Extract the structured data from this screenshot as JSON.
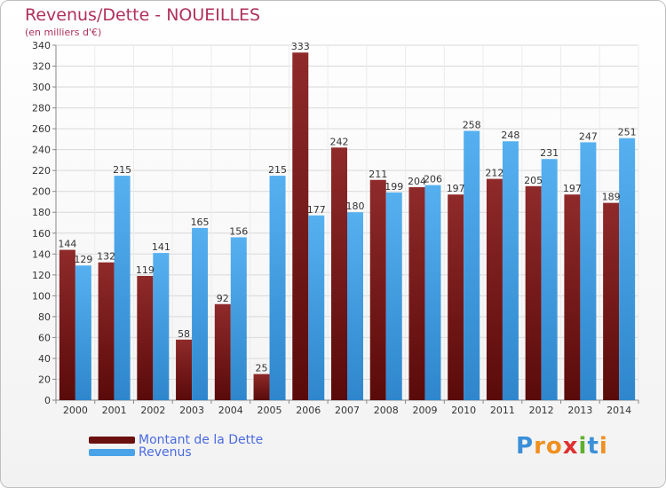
{
  "header": {
    "title": "Revenus/Dette - NOUEILLES",
    "subtitle": "(en milliers d'€)"
  },
  "legend": {
    "items": [
      {
        "label": "Montant de la Dette",
        "color": "#7a1a1a"
      },
      {
        "label": "Revenus",
        "color": "#4aa3e8"
      }
    ]
  },
  "logo": {
    "text": "Proxiti",
    "letters": [
      {
        "ch": "P",
        "color": "#3a8fd8"
      },
      {
        "ch": "r",
        "color": "#f09020"
      },
      {
        "ch": "o",
        "color": "#f09020"
      },
      {
        "ch": "x",
        "color": "#e03030"
      },
      {
        "ch": "i",
        "color": "#60b030"
      },
      {
        "ch": "t",
        "color": "#3a8fd8"
      },
      {
        "ch": "i",
        "color": "#f09020"
      }
    ]
  },
  "chart_data": {
    "type": "bar",
    "title": "Revenus/Dette - NOUEILLES",
    "subtitle": "(en milliers d'€)",
    "categories": [
      "2000",
      "2001",
      "2002",
      "2003",
      "2004",
      "2005",
      "2006",
      "2007",
      "2008",
      "2009",
      "2010",
      "2011",
      "2012",
      "2013",
      "2014"
    ],
    "series": [
      {
        "name": "Montant de la Dette",
        "color": "#7a1a1a",
        "values": [
          144,
          132,
          119,
          58,
          92,
          25,
          333,
          242,
          211,
          204,
          197,
          212,
          205,
          197,
          189
        ]
      },
      {
        "name": "Revenus",
        "color": "#4aa3e8",
        "values": [
          129,
          215,
          141,
          165,
          156,
          215,
          177,
          180,
          199,
          206,
          258,
          248,
          231,
          247,
          251
        ]
      }
    ],
    "ylim": [
      0,
      340
    ],
    "ytick_step": 20,
    "grid": true,
    "legend": "bottom-left"
  }
}
